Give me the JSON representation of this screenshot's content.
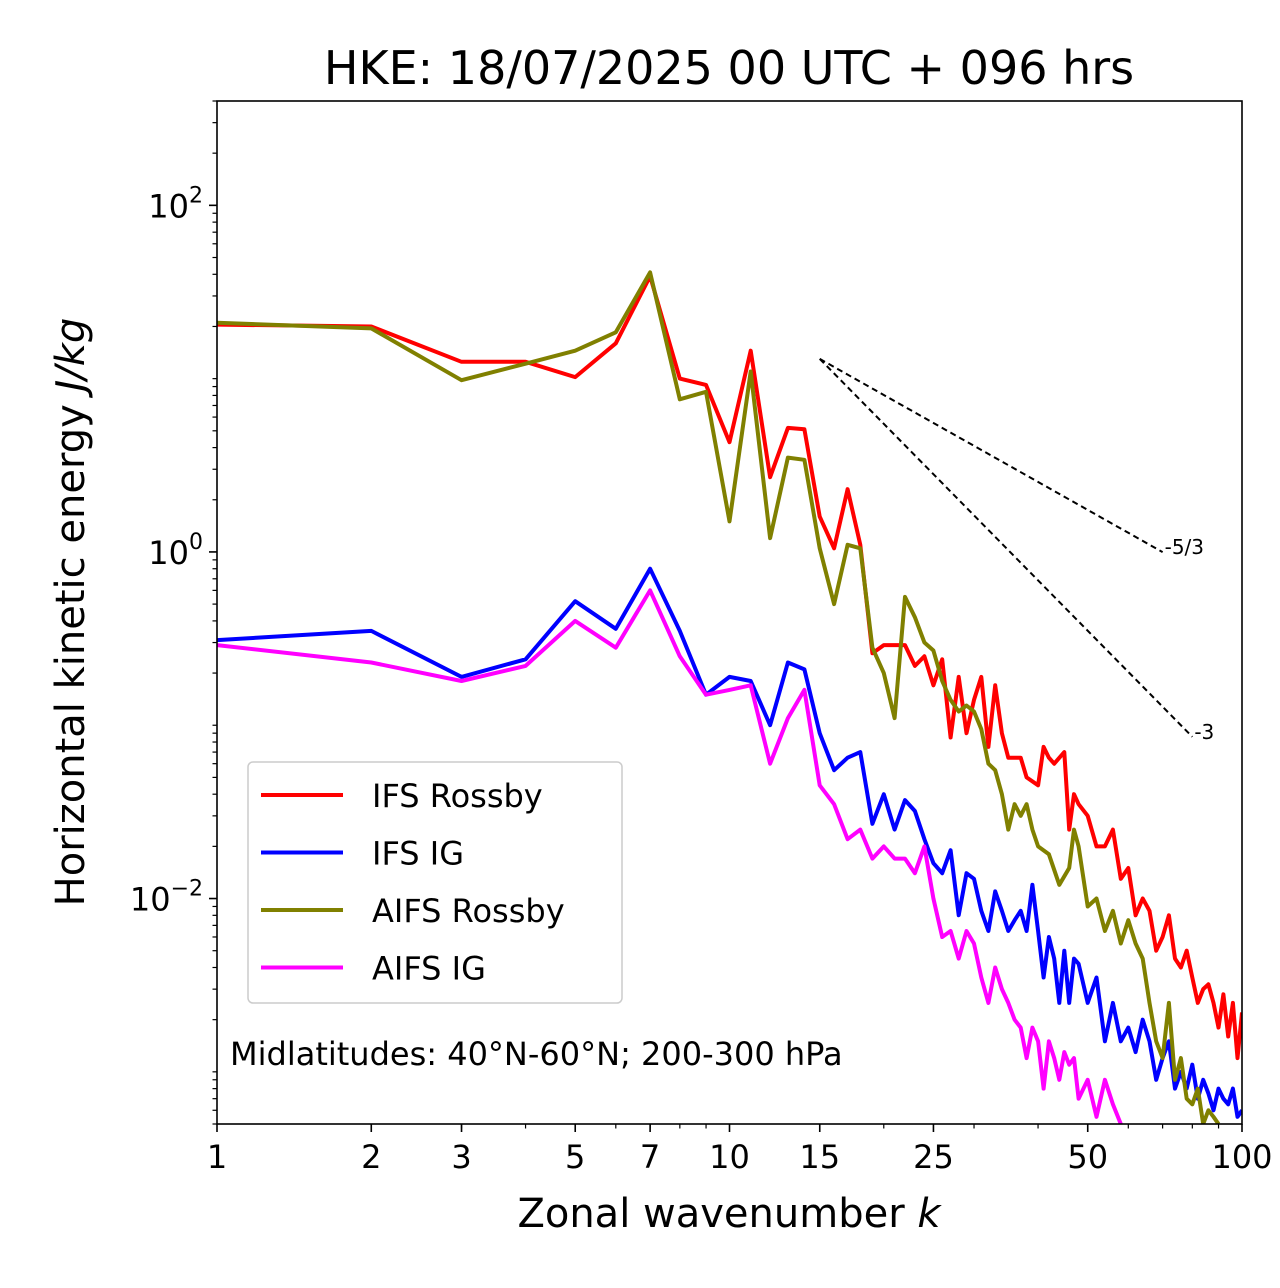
{
  "chart_data": {
    "type": "line",
    "title": "HKE: 18/07/2025 00 UTC + 096 hrs",
    "xlabel_text": "Zonal wavenumber ",
    "xlabel_var": "k",
    "ylabel_text": "Horizontal kinetic energy ",
    "ylabel_unit": "J/kg",
    "x_scale": "log",
    "y_scale": "log",
    "xlim": [
      1,
      100
    ],
    "ylim": [
      0.0005,
      400
    ],
    "x_ticks": [
      1,
      2,
      3,
      5,
      7,
      10,
      15,
      25,
      50,
      100
    ],
    "x_tick_labels": [
      "1",
      "2",
      "3",
      "5",
      "7",
      "10",
      "15",
      "25",
      "50",
      "100"
    ],
    "y_ticks": [
      {
        "value": 100,
        "base": "10",
        "exp": "2"
      },
      {
        "value": 1,
        "base": "10",
        "exp": "0"
      },
      {
        "value": 0.01,
        "base": "10",
        "exp": "−2"
      }
    ],
    "grid": false,
    "legend_position": "lower-left",
    "annotation": "Midlatitudes: 40°N-60°N; 200-300 hPa",
    "reference_lines": [
      {
        "label": "-5/3",
        "slope": -1.6667,
        "x": [
          15,
          70
        ],
        "y_start": 13
      },
      {
        "label": "-3",
        "slope": -3,
        "x": [
          15,
          80
        ],
        "y_start": 13
      }
    ],
    "series": [
      {
        "name": "IFS Rossby",
        "color": "#ff0000",
        "points": [
          [
            1,
            20.5
          ],
          [
            2,
            20
          ],
          [
            3,
            12.5
          ],
          [
            4,
            12.5
          ],
          [
            5,
            10.2
          ],
          [
            6,
            16
          ],
          [
            7,
            39
          ],
          [
            8,
            10
          ],
          [
            9,
            9.2
          ],
          [
            10,
            4.3
          ],
          [
            11,
            14.5
          ],
          [
            12,
            2.7
          ],
          [
            13,
            5.2
          ],
          [
            14,
            5.1
          ],
          [
            15,
            1.6
          ],
          [
            16,
            1.05
          ],
          [
            17,
            2.3
          ],
          [
            18,
            1.1
          ],
          [
            19,
            0.26
          ],
          [
            20,
            0.29
          ],
          [
            22,
            0.29
          ],
          [
            23,
            0.22
          ],
          [
            24,
            0.25
          ],
          [
            25,
            0.17
          ],
          [
            26,
            0.24
          ],
          [
            27,
            0.085
          ],
          [
            28,
            0.19
          ],
          [
            29,
            0.09
          ],
          [
            30,
            0.14
          ],
          [
            31,
            0.19
          ],
          [
            32,
            0.075
          ],
          [
            33,
            0.17
          ],
          [
            34,
            0.09
          ],
          [
            35,
            0.065
          ],
          [
            37,
            0.065
          ],
          [
            38,
            0.05
          ],
          [
            40,
            0.045
          ],
          [
            41,
            0.075
          ],
          [
            42,
            0.065
          ],
          [
            43,
            0.06
          ],
          [
            45,
            0.07
          ],
          [
            46,
            0.025
          ],
          [
            47,
            0.04
          ],
          [
            48,
            0.035
          ],
          [
            50,
            0.03
          ],
          [
            52,
            0.02
          ],
          [
            54,
            0.02
          ],
          [
            56,
            0.025
          ],
          [
            58,
            0.013
          ],
          [
            60,
            0.015
          ],
          [
            62,
            0.008
          ],
          [
            64,
            0.01
          ],
          [
            66,
            0.0085
          ],
          [
            68,
            0.005
          ],
          [
            70,
            0.006
          ],
          [
            72,
            0.008
          ],
          [
            74,
            0.0045
          ],
          [
            76,
            0.004
          ],
          [
            78,
            0.005
          ],
          [
            80,
            0.0035
          ],
          [
            82,
            0.0025
          ],
          [
            84,
            0.003
          ],
          [
            86,
            0.0032
          ],
          [
            88,
            0.0025
          ],
          [
            90,
            0.0018
          ],
          [
            92,
            0.0028
          ],
          [
            94,
            0.0016
          ],
          [
            96,
            0.0025
          ],
          [
            98,
            0.0012
          ],
          [
            100,
            0.0022
          ]
        ]
      },
      {
        "name": "IFS IG",
        "color": "#0000ff",
        "points": [
          [
            1,
            0.31
          ],
          [
            2,
            0.35
          ],
          [
            3,
            0.19
          ],
          [
            4,
            0.24
          ],
          [
            5,
            0.52
          ],
          [
            6,
            0.36
          ],
          [
            7,
            0.8
          ],
          [
            8,
            0.35
          ],
          [
            9,
            0.15
          ],
          [
            10,
            0.19
          ],
          [
            11,
            0.18
          ],
          [
            12,
            0.1
          ],
          [
            13,
            0.23
          ],
          [
            14,
            0.21
          ],
          [
            15,
            0.09
          ],
          [
            16,
            0.055
          ],
          [
            17,
            0.065
          ],
          [
            18,
            0.07
          ],
          [
            19,
            0.027
          ],
          [
            20,
            0.04
          ],
          [
            21,
            0.025
          ],
          [
            22,
            0.037
          ],
          [
            23,
            0.032
          ],
          [
            24,
            0.022
          ],
          [
            25,
            0.016
          ],
          [
            26,
            0.014
          ],
          [
            27,
            0.019
          ],
          [
            28,
            0.008
          ],
          [
            29,
            0.014
          ],
          [
            30,
            0.013
          ],
          [
            31,
            0.0085
          ],
          [
            32,
            0.0065
          ],
          [
            33,
            0.011
          ],
          [
            34,
            0.0085
          ],
          [
            35,
            0.0065
          ],
          [
            36,
            0.0075
          ],
          [
            37,
            0.0085
          ],
          [
            38,
            0.0065
          ],
          [
            39,
            0.012
          ],
          [
            40,
            0.0065
          ],
          [
            41,
            0.0035
          ],
          [
            42,
            0.006
          ],
          [
            43,
            0.0045
          ],
          [
            44,
            0.0025
          ],
          [
            45,
            0.005
          ],
          [
            46,
            0.0025
          ],
          [
            47,
            0.0045
          ],
          [
            48,
            0.0042
          ],
          [
            50,
            0.0025
          ],
          [
            52,
            0.0035
          ],
          [
            54,
            0.0015
          ],
          [
            56,
            0.0025
          ],
          [
            58,
            0.0015
          ],
          [
            60,
            0.0018
          ],
          [
            62,
            0.0013
          ],
          [
            64,
            0.002
          ],
          [
            66,
            0.0015
          ],
          [
            68,
            0.0009
          ],
          [
            70,
            0.0012
          ],
          [
            72,
            0.0015
          ],
          [
            74,
            0.0008
          ],
          [
            76,
            0.001
          ],
          [
            78,
            0.0008
          ],
          [
            80,
            0.0011
          ],
          [
            82,
            0.0007
          ],
          [
            84,
            0.0009
          ],
          [
            86,
            0.00075
          ],
          [
            88,
            0.0006
          ],
          [
            90,
            0.0008
          ],
          [
            92,
            0.0007
          ],
          [
            94,
            0.00065
          ],
          [
            96,
            0.0008
          ],
          [
            98,
            0.00055
          ],
          [
            100,
            0.0006
          ]
        ]
      },
      {
        "name": "AIFS Rossby",
        "color": "#808000",
        "points": [
          [
            1,
            21
          ],
          [
            2,
            19.5
          ],
          [
            3,
            9.8
          ],
          [
            4,
            12.2
          ],
          [
            5,
            14.5
          ],
          [
            6,
            18.5
          ],
          [
            7,
            41
          ],
          [
            8,
            7.6
          ],
          [
            9,
            8.4
          ],
          [
            10,
            1.5
          ],
          [
            11,
            11
          ],
          [
            12,
            1.2
          ],
          [
            13,
            3.5
          ],
          [
            14,
            3.4
          ],
          [
            15,
            1.05
          ],
          [
            16,
            0.5
          ],
          [
            17,
            1.1
          ],
          [
            18,
            1.05
          ],
          [
            19,
            0.28
          ],
          [
            20,
            0.2
          ],
          [
            21,
            0.11
          ],
          [
            22,
            0.55
          ],
          [
            23,
            0.42
          ],
          [
            24,
            0.3
          ],
          [
            25,
            0.27
          ],
          [
            26,
            0.18
          ],
          [
            27,
            0.14
          ],
          [
            28,
            0.12
          ],
          [
            29,
            0.13
          ],
          [
            30,
            0.12
          ],
          [
            31,
            0.095
          ],
          [
            32,
            0.06
          ],
          [
            33,
            0.055
          ],
          [
            34,
            0.04
          ],
          [
            35,
            0.025
          ],
          [
            36,
            0.035
          ],
          [
            37,
            0.03
          ],
          [
            38,
            0.035
          ],
          [
            39,
            0.025
          ],
          [
            40,
            0.02
          ],
          [
            42,
            0.018
          ],
          [
            44,
            0.012
          ],
          [
            46,
            0.015
          ],
          [
            47,
            0.025
          ],
          [
            48,
            0.02
          ],
          [
            50,
            0.009
          ],
          [
            52,
            0.01
          ],
          [
            54,
            0.0065
          ],
          [
            56,
            0.0085
          ],
          [
            58,
            0.0055
          ],
          [
            60,
            0.0075
          ],
          [
            62,
            0.0055
          ],
          [
            64,
            0.0045
          ],
          [
            66,
            0.0025
          ],
          [
            68,
            0.0015
          ],
          [
            70,
            0.0012
          ],
          [
            72,
            0.0025
          ],
          [
            74,
            0.0009
          ],
          [
            76,
            0.0012
          ],
          [
            78,
            0.0007
          ],
          [
            80,
            0.00065
          ],
          [
            82,
            0.0008
          ],
          [
            84,
            0.0005
          ],
          [
            86,
            0.0006
          ],
          [
            88,
            0.00055
          ],
          [
            90,
            0.0005
          ]
        ]
      },
      {
        "name": "AIFS IG",
        "color": "#ff00ff",
        "points": [
          [
            1,
            0.29
          ],
          [
            2,
            0.23
          ],
          [
            3,
            0.18
          ],
          [
            4,
            0.22
          ],
          [
            5,
            0.4
          ],
          [
            6,
            0.28
          ],
          [
            7,
            0.6
          ],
          [
            8,
            0.25
          ],
          [
            9,
            0.15
          ],
          [
            10,
            0.16
          ],
          [
            11,
            0.17
          ],
          [
            12,
            0.06
          ],
          [
            13,
            0.11
          ],
          [
            14,
            0.16
          ],
          [
            15,
            0.045
          ],
          [
            16,
            0.035
          ],
          [
            17,
            0.022
          ],
          [
            18,
            0.025
          ],
          [
            19,
            0.017
          ],
          [
            20,
            0.02
          ],
          [
            21,
            0.017
          ],
          [
            22,
            0.017
          ],
          [
            23,
            0.014
          ],
          [
            24,
            0.02
          ],
          [
            25,
            0.01
          ],
          [
            26,
            0.006
          ],
          [
            27,
            0.0065
          ],
          [
            28,
            0.0045
          ],
          [
            29,
            0.0065
          ],
          [
            30,
            0.0055
          ],
          [
            31,
            0.0035
          ],
          [
            32,
            0.0025
          ],
          [
            33,
            0.004
          ],
          [
            34,
            0.003
          ],
          [
            35,
            0.0025
          ],
          [
            36,
            0.002
          ],
          [
            37,
            0.0018
          ],
          [
            38,
            0.0012
          ],
          [
            39,
            0.0018
          ],
          [
            40,
            0.0015
          ],
          [
            41,
            0.0008
          ],
          [
            42,
            0.0015
          ],
          [
            43,
            0.0012
          ],
          [
            44,
            0.0009
          ],
          [
            45,
            0.0013
          ],
          [
            46,
            0.0011
          ],
          [
            47,
            0.0012
          ],
          [
            48,
            0.0007
          ],
          [
            50,
            0.0009
          ],
          [
            52,
            0.00055
          ],
          [
            54,
            0.0009
          ],
          [
            56,
            0.00065
          ],
          [
            58,
            0.0005
          ]
        ]
      }
    ]
  }
}
